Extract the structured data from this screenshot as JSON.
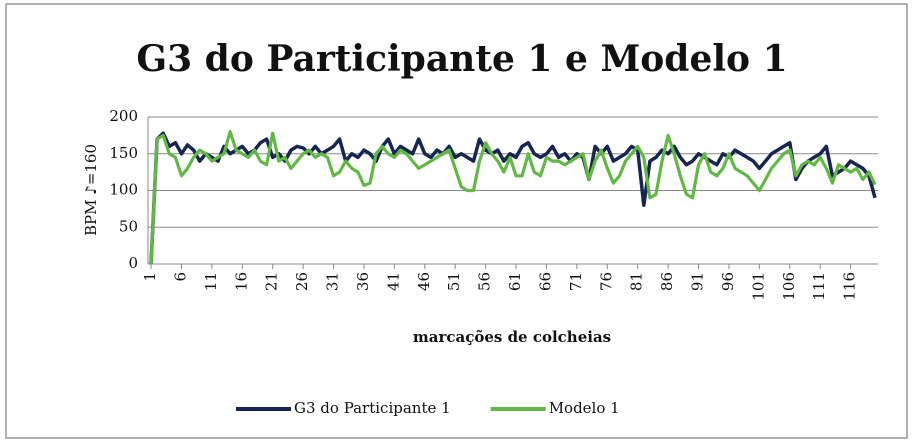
{
  "chart_data": {
    "type": "line",
    "title": "G3 do Participante 1 e Modelo 1",
    "ylabel": "BPM ♪=160",
    "xlabel": "marcações de colcheias",
    "x": [
      1,
      2,
      3,
      4,
      5,
      6,
      7,
      8,
      9,
      10,
      11,
      12,
      13,
      14,
      15,
      16,
      17,
      18,
      19,
      20,
      21,
      22,
      23,
      24,
      25,
      26,
      27,
      28,
      29,
      30,
      31,
      32,
      33,
      34,
      35,
      36,
      37,
      38,
      39,
      40,
      41,
      42,
      43,
      44,
      45,
      46,
      47,
      48,
      49,
      50,
      51,
      52,
      53,
      54,
      55,
      56,
      57,
      58,
      59,
      60,
      61,
      62,
      63,
      64,
      65,
      66,
      67,
      68,
      69,
      70,
      71,
      72,
      73,
      74,
      75,
      76,
      77,
      78,
      79,
      80,
      81,
      82,
      83,
      84,
      85,
      86,
      87,
      88,
      89,
      90,
      91,
      92,
      93,
      94,
      95,
      96,
      97,
      98,
      99,
      100,
      101,
      102,
      103,
      104,
      105,
      106,
      107,
      108,
      109,
      110,
      111,
      112,
      113,
      114,
      115,
      116,
      117,
      118,
      119,
      120
    ],
    "series": [
      {
        "name": "G3 do Participante 1",
        "color": "#172650",
        "values": [
          0,
          170,
          178,
          160,
          165,
          150,
          162,
          155,
          140,
          150,
          145,
          140,
          160,
          150,
          155,
          160,
          150,
          155,
          165,
          170,
          145,
          150,
          140,
          155,
          160,
          158,
          150,
          160,
          150,
          155,
          160,
          170,
          140,
          150,
          145,
          155,
          150,
          140,
          160,
          170,
          150,
          160,
          155,
          150,
          170,
          150,
          145,
          155,
          150,
          160,
          145,
          150,
          145,
          140,
          170,
          155,
          150,
          155,
          140,
          150,
          145,
          160,
          165,
          150,
          145,
          150,
          160,
          145,
          150,
          140,
          150,
          145,
          115,
          160,
          150,
          160,
          140,
          145,
          150,
          160,
          155,
          80,
          140,
          145,
          155,
          150,
          160,
          145,
          135,
          140,
          150,
          145,
          140,
          135,
          150,
          145,
          155,
          150,
          145,
          140,
          130,
          140,
          150,
          155,
          160,
          165,
          115,
          130,
          140,
          145,
          150,
          160,
          120,
          125,
          130,
          140,
          135,
          130,
          120,
          90
        ]
      },
      {
        "name": "Modelo 1",
        "color": "#62b845",
        "values": [
          0,
          170,
          175,
          150,
          145,
          120,
          130,
          145,
          155,
          150,
          140,
          145,
          150,
          180,
          155,
          150,
          145,
          155,
          140,
          135,
          178,
          140,
          145,
          130,
          140,
          150,
          155,
          145,
          150,
          145,
          120,
          125,
          140,
          130,
          125,
          107,
          110,
          150,
          160,
          150,
          145,
          155,
          150,
          140,
          130,
          135,
          140,
          145,
          150,
          155,
          130,
          105,
          100,
          100,
          140,
          165,
          150,
          140,
          125,
          145,
          120,
          120,
          150,
          125,
          120,
          145,
          140,
          140,
          135,
          140,
          145,
          150,
          115,
          140,
          155,
          130,
          110,
          120,
          140,
          150,
          160,
          145,
          90,
          95,
          140,
          175,
          150,
          120,
          95,
          90,
          135,
          150,
          125,
          120,
          130,
          150,
          130,
          125,
          120,
          110,
          100,
          115,
          130,
          140,
          150,
          155,
          120,
          135,
          140,
          135,
          145,
          130,
          110,
          135,
          130,
          125,
          130,
          115,
          125,
          108
        ]
      }
    ],
    "xlim": [
      0.5,
      120.5
    ],
    "xticks": [
      1,
      6,
      11,
      16,
      21,
      26,
      31,
      36,
      41,
      46,
      51,
      56,
      61,
      66,
      71,
      76,
      81,
      86,
      91,
      96,
      101,
      106,
      111,
      116
    ],
    "ylim": [
      0,
      200
    ],
    "yticks": [
      0,
      50,
      100,
      150,
      200
    ],
    "grid": true,
    "legend": "bottom"
  }
}
